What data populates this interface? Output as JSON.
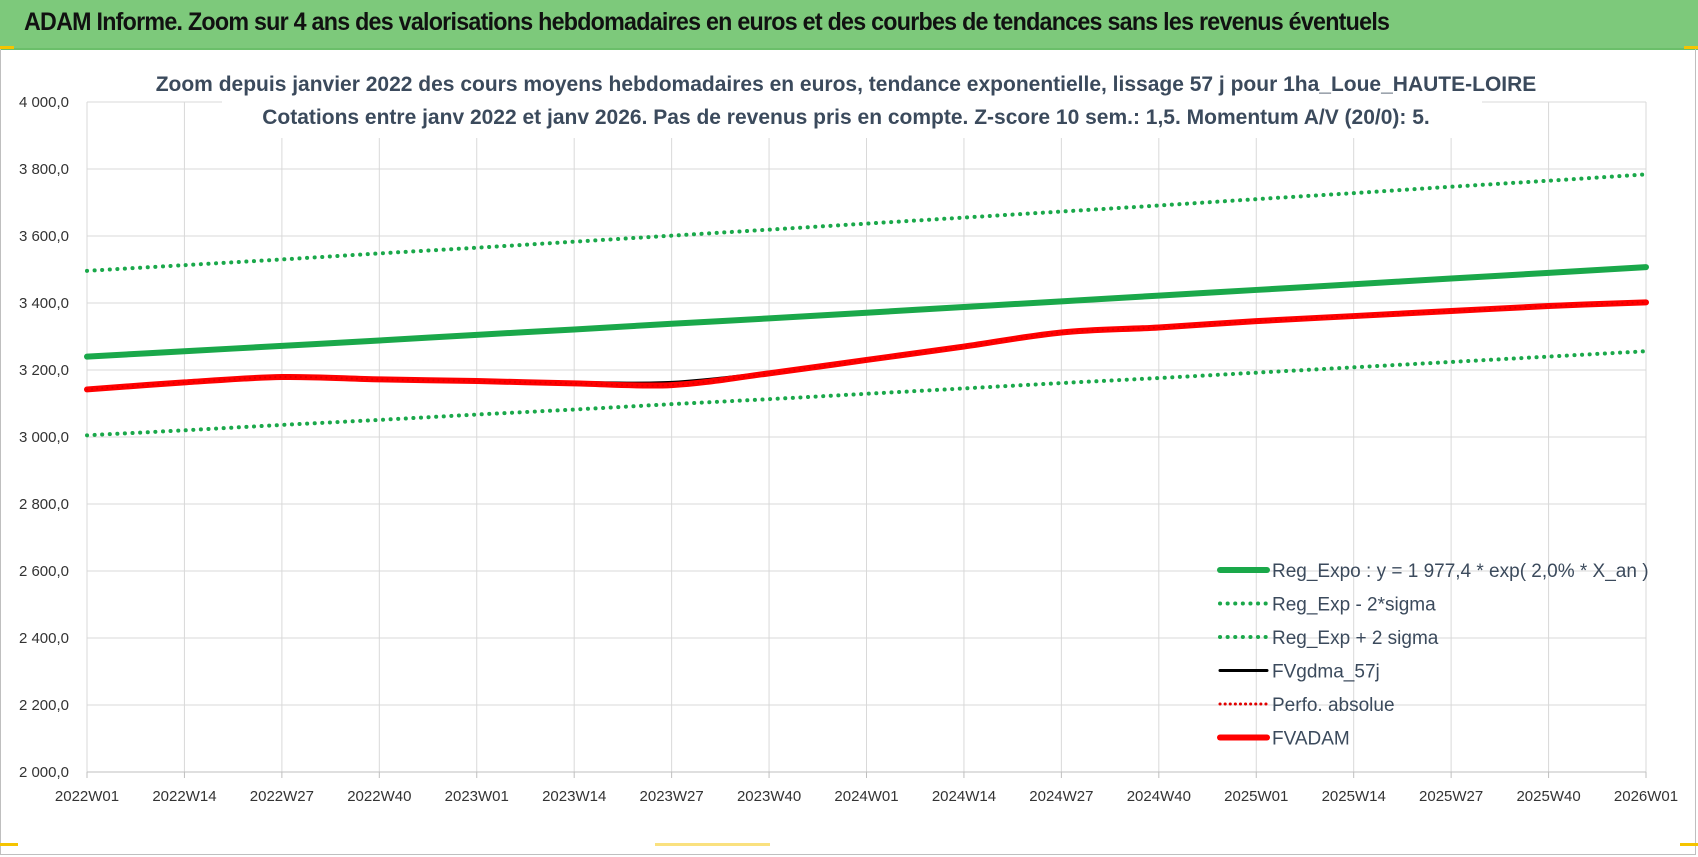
{
  "banner": {
    "title": "ADAM Informe. Zoom sur 4 ans des valorisations hebdomadaires en euros et des courbes de tendances sans les revenus éventuels"
  },
  "colors": {
    "banner_bg": "#7dc97b",
    "reg_expo": "#1aa84a",
    "band": "#1aa84a",
    "fvgdma": "#000000",
    "perfo": "#e00000",
    "fvadam": "#ff0000",
    "grid": "#d9d9d9"
  },
  "chart_data": {
    "type": "line",
    "title_line1": "Zoom depuis janvier 2022 des cours moyens hebdomadaires en euros, tendance exponentielle, lissage 57 j pour 1ha_Loue_HAUTE-LOIRE",
    "title_line2": "Cotations entre janv 2022 et janv 2026. Pas de revenus pris en compte. Z-score 10 sem.: 1,5. Momentum A/V (20/0): 5.",
    "xlabel": "",
    "ylabel": "",
    "ylim": [
      2000,
      4000
    ],
    "yticks": [
      "2 000,0",
      "2 200,0",
      "2 400,0",
      "2 600,0",
      "2 800,0",
      "3 000,0",
      "3 200,0",
      "3 400,0",
      "3 600,0",
      "3 800,0",
      "4 000,0"
    ],
    "categories": [
      "2022W01",
      "2022W14",
      "2022W27",
      "2022W40",
      "2023W01",
      "2023W14",
      "2023W27",
      "2023W40",
      "2024W01",
      "2024W14",
      "2024W27",
      "2024W40",
      "2025W01",
      "2025W14",
      "2025W27",
      "2025W40",
      "2026W01"
    ],
    "legend_position": "bottom-right",
    "series": [
      {
        "name": "Reg_Expo : y = 1 977,4 * exp( 2,0% *  X_an )",
        "style": "solid-thick",
        "color": "#1aa84a",
        "values": [
          3240,
          3256,
          3272,
          3288,
          3305,
          3321,
          3338,
          3354,
          3371,
          3388,
          3405,
          3422,
          3439,
          3456,
          3473,
          3490,
          3507
        ]
      },
      {
        "name": "Reg_Exp - 2*sigma",
        "style": "dotted",
        "color": "#1aa84a",
        "values": [
          3005,
          3020,
          3036,
          3051,
          3067,
          3082,
          3098,
          3113,
          3129,
          3145,
          3161,
          3176,
          3192,
          3208,
          3224,
          3240,
          3256
        ]
      },
      {
        "name": "Reg_Exp + 2 sigma",
        "style": "dotted",
        "color": "#1aa84a",
        "values": [
          3496,
          3513,
          3530,
          3548,
          3565,
          3583,
          3601,
          3619,
          3637,
          3655,
          3673,
          3691,
          3710,
          3728,
          3747,
          3765,
          3784
        ]
      },
      {
        "name": "FVgdma_57j",
        "style": "solid",
        "color": "#000000",
        "values": [
          3140,
          3162,
          3178,
          3172,
          3168,
          3163,
          3163,
          3192,
          3230,
          3270,
          3310,
          3325,
          3345,
          3360,
          3375,
          3390,
          3402
        ]
      },
      {
        "name": "Perfo. absolue",
        "style": "dotted",
        "color": "#e00000",
        "values": [
          3142,
          3163,
          3179,
          3172,
          3167,
          3160,
          3155,
          3190,
          3230,
          3270,
          3312,
          3327,
          3346,
          3361,
          3376,
          3391,
          3402
        ]
      },
      {
        "name": "FVADAM",
        "style": "solid-thick",
        "color": "#ff0000",
        "values": [
          3142,
          3163,
          3179,
          3172,
          3167,
          3160,
          3155,
          3190,
          3230,
          3270,
          3312,
          3327,
          3346,
          3361,
          3376,
          3391,
          3402
        ]
      }
    ]
  }
}
